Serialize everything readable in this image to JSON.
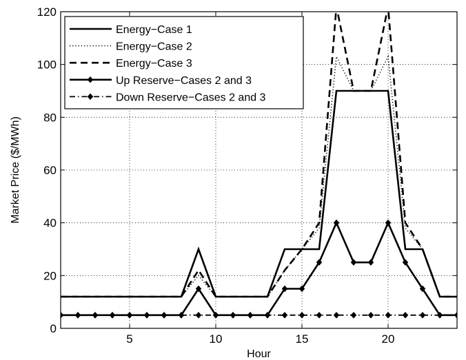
{
  "chart_data": {
    "type": "line",
    "title": "",
    "xlabel": "Hour",
    "ylabel": "Market Price ($/MWh)",
    "xlim": [
      1,
      24
    ],
    "ylim": [
      0,
      120
    ],
    "xticks": [
      5,
      10,
      15,
      20
    ],
    "yticks": [
      0,
      20,
      40,
      60,
      80,
      100,
      120
    ],
    "grid": true,
    "legend_position": "top-left",
    "x": [
      1,
      2,
      3,
      4,
      5,
      6,
      7,
      8,
      9,
      10,
      11,
      12,
      13,
      14,
      15,
      16,
      17,
      18,
      19,
      20,
      21,
      22,
      23,
      24
    ],
    "series": [
      {
        "name": "Energy−Case 1",
        "style": "solid",
        "marker": "none",
        "values": [
          12,
          12,
          12,
          12,
          12,
          12,
          12,
          12,
          30,
          12,
          12,
          12,
          12,
          30,
          30,
          30,
          90,
          90,
          90,
          90,
          30,
          30,
          12,
          12
        ]
      },
      {
        "name": "Energy−Case 2",
        "style": "dotted",
        "marker": "none",
        "values": [
          12,
          12,
          12,
          12,
          12,
          12,
          12,
          12,
          20,
          12,
          12,
          12,
          12,
          22,
          30,
          38,
          103,
          90,
          90,
          103,
          38,
          30,
          12,
          12
        ]
      },
      {
        "name": "Energy−Case 3",
        "style": "dashed",
        "marker": "none",
        "values": [
          12,
          12,
          12,
          12,
          12,
          12,
          12,
          12,
          22,
          12,
          12,
          12,
          12,
          22,
          30,
          40,
          122,
          90,
          90,
          122,
          40,
          30,
          12,
          12
        ]
      },
      {
        "name": "Up Reserve−Cases 2 and 3",
        "style": "solid",
        "marker": "diamond",
        "values": [
          5,
          5,
          5,
          5,
          5,
          5,
          5,
          5,
          15,
          5,
          5,
          5,
          5,
          15,
          15,
          25,
          40,
          25,
          25,
          40,
          25,
          15,
          5,
          5
        ]
      },
      {
        "name": "Down Reserve−Cases 2 and 3",
        "style": "dashdot",
        "marker": "diamond",
        "values": [
          5,
          5,
          5,
          5,
          5,
          5,
          5,
          5,
          5,
          5,
          5,
          5,
          5,
          5,
          5,
          5,
          5,
          5,
          5,
          5,
          5,
          5,
          5,
          5
        ]
      }
    ]
  }
}
